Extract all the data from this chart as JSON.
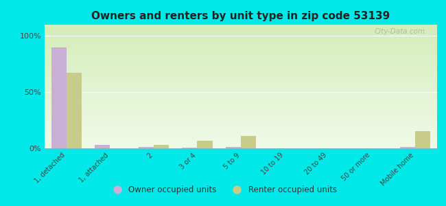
{
  "title": "Owners and renters by unit type in zip code 53139",
  "categories": [
    "1, detached",
    "1, attached",
    "2",
    "3 or 4",
    "5 to 9",
    "10 to 19",
    "20 to 49",
    "50 or more",
    "Mobile home"
  ],
  "owner_values": [
    90,
    3,
    1,
    0.5,
    1,
    0,
    0,
    0,
    1
  ],
  "renter_values": [
    67,
    0,
    3,
    7,
    11,
    0,
    0,
    0,
    15
  ],
  "owner_color": "#c9aed6",
  "renter_color": "#c8cc8a",
  "background_color": "#00e8e8",
  "ylabel_ticks": [
    "0%",
    "50%",
    "100%"
  ],
  "yticks": [
    0,
    50,
    100
  ],
  "ylim": [
    0,
    110
  ],
  "legend_owner": "Owner occupied units",
  "legend_renter": "Renter occupied units",
  "bar_width": 0.35,
  "watermark": "City-Data.com"
}
